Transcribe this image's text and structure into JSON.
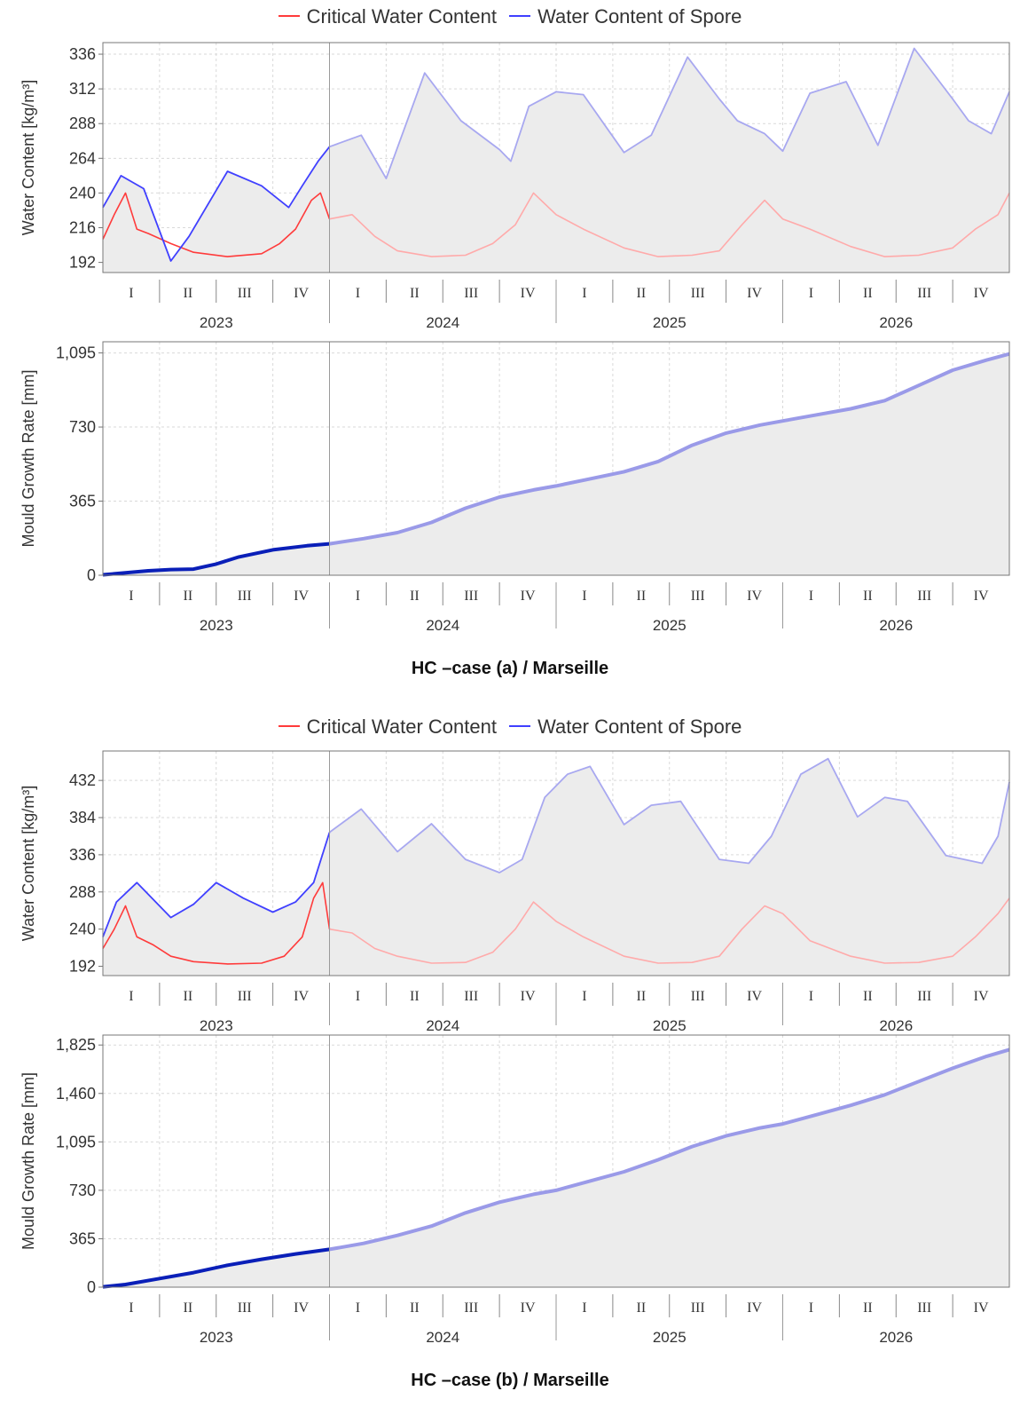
{
  "colors": {
    "critical": "#ff3b3b",
    "spore": "#4040ff",
    "growth": "#0a1fb8",
    "fade_critical": "#ffaaaa",
    "fade_spore": "#a8a8f0",
    "fade_growth": "#9a9ae8",
    "fill": "#ececec",
    "grid": "#d9d9d9"
  },
  "panels": [
    {
      "legend": {
        "critical": "Critical Water Content",
        "spore": "Water Content of Spore"
      },
      "caption": "HC –case (a) / Marseille"
    },
    {
      "legend": {
        "critical": "Critical Water Content",
        "spore": "Water Content of Spore"
      },
      "caption": "HC –case (b) / Marseille"
    }
  ],
  "chart_data": [
    {
      "type": "line",
      "panel": "HC –case (a) / Marseille",
      "xlabel": "",
      "ylabel": "Water Content [kg/m³]",
      "x_years": [
        "2023",
        "2024",
        "2025",
        "2026"
      ],
      "x_quarters": [
        "I",
        "II",
        "III",
        "IV"
      ],
      "ylim": [
        185,
        344
      ],
      "yticks": [
        "192",
        "216",
        "240",
        "264",
        "288",
        "312",
        "336"
      ],
      "grid": true,
      "legend_position": "top",
      "x_unit": "year (fractional)",
      "series": [
        {
          "name": "Water Content of Spore",
          "x": [
            2023.0,
            2023.08,
            2023.18,
            2023.3,
            2023.38,
            2023.55,
            2023.7,
            2023.82,
            2023.88,
            2023.95,
            2024.0,
            2024.14,
            2024.25,
            2024.42,
            2024.58,
            2024.75,
            2024.8,
            2024.88,
            2025.0,
            2025.12,
            2025.3,
            2025.42,
            2025.58,
            2025.72,
            2025.8,
            2025.92,
            2026.0,
            2026.12,
            2026.28,
            2026.42,
            2026.58,
            2026.75,
            2026.82,
            2026.92,
            2027.0
          ],
          "values": [
            230,
            252,
            243,
            193,
            210,
            255,
            245,
            230,
            245,
            262,
            272,
            280,
            250,
            323,
            290,
            270,
            262,
            300,
            310,
            308,
            268,
            280,
            334,
            305,
            290,
            281,
            269,
            309,
            317,
            273,
            340,
            305,
            290,
            281,
            310
          ]
        },
        {
          "name": "Critical Water Content",
          "x": [
            2023.0,
            2023.05,
            2023.1,
            2023.15,
            2023.2,
            2023.3,
            2023.4,
            2023.55,
            2023.7,
            2023.78,
            2023.85,
            2023.92,
            2023.96,
            2024.0,
            2024.1,
            2024.2,
            2024.3,
            2024.45,
            2024.6,
            2024.72,
            2024.82,
            2024.9,
            2025.0,
            2025.12,
            2025.3,
            2025.45,
            2025.6,
            2025.72,
            2025.82,
            2025.92,
            2026.0,
            2026.12,
            2026.3,
            2026.45,
            2026.6,
            2026.75,
            2026.85,
            2026.95,
            2027.0
          ],
          "values": [
            208,
            225,
            240,
            215,
            212,
            205,
            199,
            196,
            198,
            205,
            215,
            235,
            240,
            222,
            225,
            210,
            200,
            196,
            197,
            205,
            218,
            240,
            225,
            215,
            202,
            196,
            197,
            200,
            218,
            235,
            222,
            215,
            203,
            196,
            197,
            202,
            215,
            225,
            240
          ]
        }
      ]
    },
    {
      "type": "area",
      "panel": "HC –case (a) / Marseille",
      "xlabel": "",
      "ylabel": "Mould Growth Rate [mm]",
      "x_years": [
        "2023",
        "2024",
        "2025",
        "2026"
      ],
      "x_quarters": [
        "I",
        "II",
        "III",
        "IV"
      ],
      "ylim": [
        0,
        1150
      ],
      "yticks": [
        "0",
        "365",
        "730",
        "1,095"
      ],
      "grid": true,
      "x_unit": "year (fractional)",
      "series": [
        {
          "name": "",
          "x": [
            2023.0,
            2023.1,
            2023.2,
            2023.3,
            2023.4,
            2023.5,
            2023.6,
            2023.75,
            2023.9,
            2024.0,
            2024.15,
            2024.3,
            2024.45,
            2024.6,
            2024.75,
            2024.9,
            2025.0,
            2025.15,
            2025.3,
            2025.45,
            2025.6,
            2025.75,
            2025.9,
            2026.0,
            2026.15,
            2026.3,
            2026.45,
            2026.6,
            2026.75,
            2026.9,
            2027.0
          ],
          "values": [
            2,
            12,
            22,
            28,
            30,
            55,
            90,
            125,
            145,
            155,
            180,
            210,
            260,
            330,
            385,
            420,
            440,
            475,
            510,
            560,
            640,
            700,
            740,
            760,
            790,
            820,
            860,
            935,
            1010,
            1060,
            1090
          ]
        }
      ]
    },
    {
      "type": "line",
      "panel": "HC –case (b) / Marseille",
      "xlabel": "",
      "ylabel": "Water Content [kg/m³]",
      "x_years": [
        "2023",
        "2024",
        "2025",
        "2026"
      ],
      "x_quarters": [
        "I",
        "II",
        "III",
        "IV"
      ],
      "ylim": [
        180,
        470
      ],
      "yticks": [
        "192",
        "240",
        "288",
        "336",
        "384",
        "432"
      ],
      "grid": true,
      "legend_position": "top",
      "x_unit": "year (fractional)",
      "series": [
        {
          "name": "Water Content of Spore",
          "x": [
            2023.0,
            2023.06,
            2023.15,
            2023.3,
            2023.4,
            2023.5,
            2023.62,
            2023.75,
            2023.85,
            2023.93,
            2024.0,
            2024.14,
            2024.3,
            2024.45,
            2024.6,
            2024.75,
            2024.85,
            2024.95,
            2025.05,
            2025.15,
            2025.3,
            2025.42,
            2025.55,
            2025.72,
            2025.85,
            2025.95,
            2026.08,
            2026.2,
            2026.33,
            2026.45,
            2026.55,
            2026.72,
            2026.88,
            2026.95,
            2027.0
          ],
          "values": [
            230,
            275,
            300,
            255,
            272,
            300,
            280,
            262,
            275,
            300,
            365,
            395,
            340,
            376,
            330,
            313,
            330,
            410,
            440,
            450,
            375,
            400,
            405,
            330,
            325,
            360,
            440,
            460,
            385,
            410,
            405,
            335,
            325,
            360,
            430
          ]
        },
        {
          "name": "Critical Water Content",
          "x": [
            2023.0,
            2023.05,
            2023.1,
            2023.15,
            2023.22,
            2023.3,
            2023.4,
            2023.55,
            2023.7,
            2023.8,
            2023.88,
            2023.93,
            2023.97,
            2024.0,
            2024.1,
            2024.2,
            2024.3,
            2024.45,
            2024.6,
            2024.72,
            2024.82,
            2024.9,
            2025.0,
            2025.12,
            2025.3,
            2025.45,
            2025.6,
            2025.72,
            2025.82,
            2025.92,
            2026.0,
            2026.12,
            2026.3,
            2026.45,
            2026.6,
            2026.75,
            2026.85,
            2026.95,
            2027.0
          ],
          "values": [
            215,
            240,
            270,
            230,
            220,
            205,
            198,
            195,
            196,
            205,
            230,
            280,
            300,
            240,
            235,
            215,
            205,
            196,
            197,
            210,
            240,
            275,
            250,
            230,
            205,
            196,
            197,
            205,
            240,
            270,
            260,
            225,
            205,
            196,
            197,
            205,
            230,
            260,
            280
          ]
        }
      ]
    },
    {
      "type": "area",
      "panel": "HC –case (b) / Marseille",
      "xlabel": "",
      "ylabel": "Mould Growth Rate [mm]",
      "x_years": [
        "2023",
        "2024",
        "2025",
        "2026"
      ],
      "x_quarters": [
        "I",
        "II",
        "III",
        "IV"
      ],
      "ylim": [
        0,
        1900
      ],
      "yticks": [
        "0",
        "365",
        "730",
        "1,095",
        "1,460",
        "1,825"
      ],
      "grid": true,
      "x_unit": "year (fractional)",
      "series": [
        {
          "name": "",
          "x": [
            2023.0,
            2023.1,
            2023.25,
            2023.4,
            2023.55,
            2023.7,
            2023.85,
            2024.0,
            2024.15,
            2024.3,
            2024.45,
            2024.6,
            2024.75,
            2024.9,
            2025.0,
            2025.15,
            2025.3,
            2025.45,
            2025.6,
            2025.75,
            2025.9,
            2026.0,
            2026.15,
            2026.3,
            2026.45,
            2026.6,
            2026.75,
            2026.9,
            2027.0
          ],
          "values": [
            3,
            20,
            65,
            110,
            165,
            210,
            250,
            285,
            330,
            390,
            460,
            560,
            640,
            700,
            730,
            800,
            870,
            960,
            1060,
            1140,
            1200,
            1230,
            1300,
            1370,
            1450,
            1550,
            1650,
            1740,
            1790
          ]
        }
      ]
    }
  ]
}
